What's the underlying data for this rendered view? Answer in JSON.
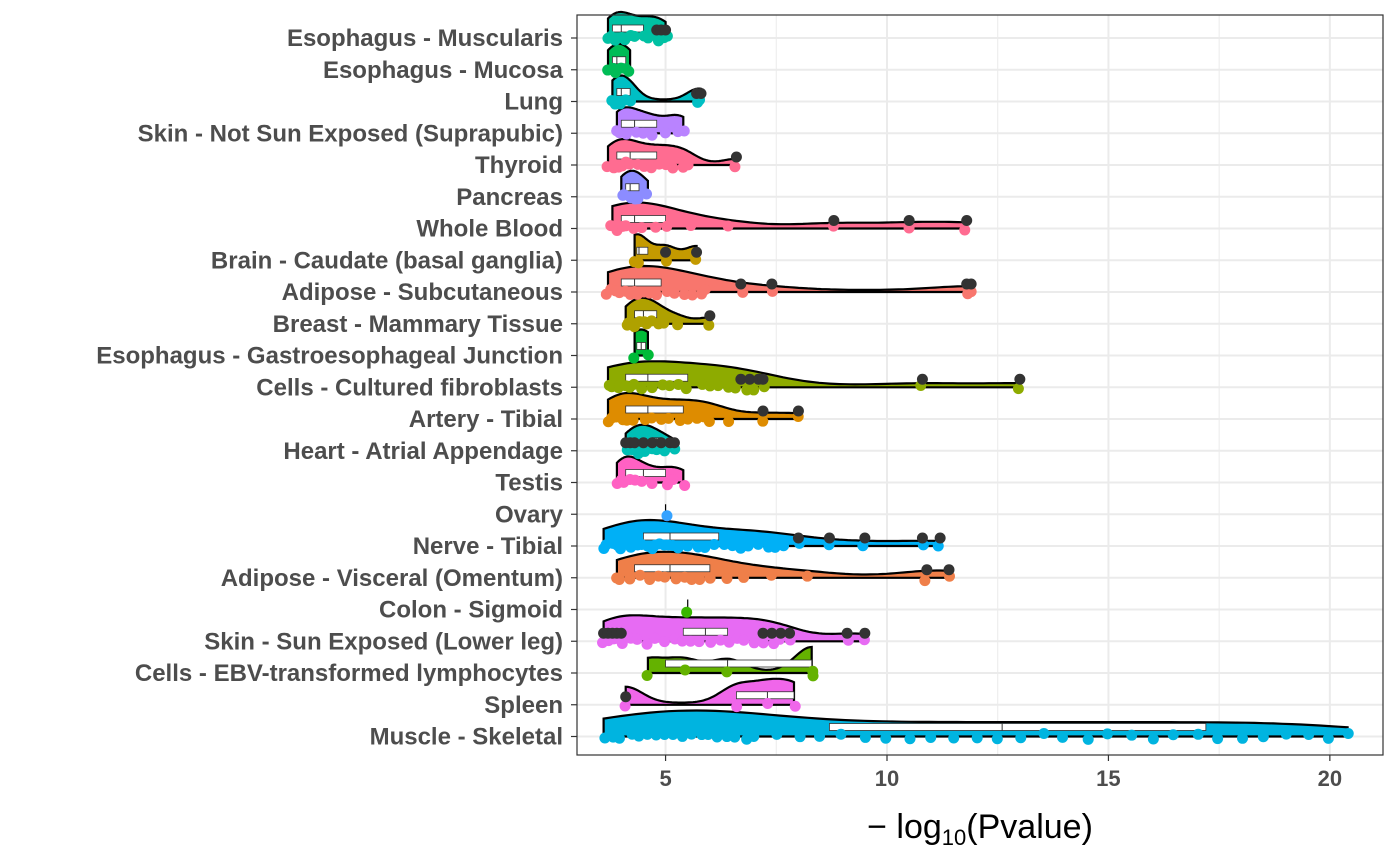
{
  "chart_data": {
    "type": "raincloud",
    "xlabel_base": "− log",
    "xlabel_sub": "10",
    "xlabel_arg": "(Pvalue)",
    "ylabel": "",
    "xlim": [
      3.0,
      21.2
    ],
    "x_ticks": [
      5,
      10,
      15,
      20
    ],
    "x_tick_labels": [
      "5",
      "10",
      "15",
      "20"
    ],
    "grid": true,
    "point_color_outlier": "#333333",
    "categories": [
      {
        "label": "Esophagus - Muscularis",
        "color": "#00C1A3",
        "points": [
          3.7,
          3.8,
          3.8,
          3.9,
          4.0,
          4.1,
          4.2,
          4.3,
          4.5,
          4.6,
          4.7,
          4.8,
          5.0,
          5.0
        ],
        "outliers": [
          4.8,
          4.9,
          5.0
        ],
        "median": 4.0,
        "q1": 3.8,
        "q3": 4.5
      },
      {
        "label": "Esophagus - Mucosa",
        "color": "#00BC56",
        "points": [
          3.7,
          3.8,
          3.9,
          4.0,
          4.1,
          4.2
        ],
        "outliers": [],
        "median": 3.9,
        "q1": 3.8,
        "q3": 4.1
      },
      {
        "label": "Lung",
        "color": "#00BFC4",
        "points": [
          3.8,
          3.9,
          4.0,
          4.1,
          4.2,
          5.7,
          5.8
        ],
        "outliers": [
          5.7,
          5.8
        ],
        "median": 4.0,
        "q1": 3.9,
        "q3": 4.2
      },
      {
        "label": "Skin - Not Sun Exposed (Suprapubic)",
        "color": "#B983FF",
        "points": [
          3.9,
          4.0,
          4.1,
          4.3,
          4.5,
          4.7,
          5.0,
          5.3,
          5.4
        ],
        "outliers": [],
        "median": 4.3,
        "q1": 4.0,
        "q3": 4.8
      },
      {
        "label": "Thyroid",
        "color": "#FF6C91",
        "points": [
          3.7,
          3.8,
          3.9,
          4.0,
          4.1,
          4.2,
          4.4,
          4.5,
          4.7,
          4.9,
          5.0,
          5.2,
          5.4,
          5.5,
          6.6
        ],
        "outliers": [
          6.6
        ],
        "median": 4.2,
        "q1": 3.9,
        "q3": 4.8
      },
      {
        "label": "Pancreas",
        "color": "#8C8CFF",
        "points": [
          4.0,
          4.1,
          4.2,
          4.3,
          4.4,
          4.6
        ],
        "outliers": [],
        "median": 4.2,
        "q1": 4.1,
        "q3": 4.4
      },
      {
        "label": "Whole Blood",
        "color": "#FF6C91",
        "points": [
          3.8,
          3.9,
          4.0,
          4.1,
          4.3,
          4.5,
          4.8,
          5.0,
          5.6,
          6.4,
          8.8,
          10.5,
          11.8
        ],
        "outliers": [
          8.8,
          10.5,
          11.8
        ],
        "median": 4.3,
        "q1": 4.0,
        "q3": 5.0
      },
      {
        "label": "Brain - Caudate (basal ganglia)",
        "color": "#C49A00",
        "points": [
          4.3,
          4.4,
          5.0,
          5.7
        ],
        "outliers": [
          5.0,
          5.7
        ],
        "median": 4.4,
        "q1": 4.35,
        "q3": 4.6
      },
      {
        "label": "Adipose - Subcutaneous",
        "color": "#F8766D",
        "points": [
          3.7,
          3.8,
          3.9,
          4.0,
          4.1,
          4.2,
          4.3,
          4.4,
          4.5,
          4.6,
          4.8,
          5.0,
          5.2,
          5.4,
          5.6,
          5.8,
          5.9,
          6.7,
          7.4,
          11.8,
          11.9
        ],
        "outliers": [
          6.7,
          7.4,
          11.8,
          11.9
        ],
        "median": 4.3,
        "q1": 4.0,
        "q3": 4.9
      },
      {
        "label": "Breast - Mammary Tissue",
        "color": "#AFA100",
        "points": [
          4.1,
          4.2,
          4.3,
          4.4,
          4.5,
          4.6,
          4.7,
          4.8,
          5.0,
          5.3,
          6.0
        ],
        "outliers": [
          6.0
        ],
        "median": 4.5,
        "q1": 4.3,
        "q3": 4.8
      },
      {
        "label": "Esophagus - Gastroesophageal Junction",
        "color": "#00BA38",
        "points": [
          4.3,
          4.6
        ],
        "outliers": [],
        "median": 4.45,
        "q1": 4.35,
        "q3": 4.55
      },
      {
        "label": "Cells - Cultured fibroblasts",
        "color": "#8EAB00",
        "points": [
          3.7,
          3.8,
          3.9,
          4.0,
          4.1,
          4.2,
          4.3,
          4.5,
          4.7,
          4.9,
          5.1,
          5.3,
          5.5,
          5.8,
          6.0,
          6.2,
          6.4,
          6.6,
          6.8,
          7.0,
          7.2,
          10.8,
          13.0
        ],
        "outliers": [
          6.7,
          6.9,
          7.1,
          7.2,
          10.8,
          13.0
        ],
        "median": 4.6,
        "q1": 4.1,
        "q3": 5.5
      },
      {
        "label": "Artery - Tibial",
        "color": "#DE8C00",
        "points": [
          3.7,
          3.8,
          3.9,
          4.0,
          4.1,
          4.2,
          4.3,
          4.5,
          4.7,
          4.9,
          5.1,
          5.3,
          5.5,
          5.7,
          5.9,
          6.0,
          6.4,
          7.2,
          8.0
        ],
        "outliers": [
          7.2,
          8.0
        ],
        "median": 4.6,
        "q1": 4.1,
        "q3": 5.4
      },
      {
        "label": "Heart - Atrial Appendage",
        "color": "#00BFB5",
        "points": [
          4.1,
          4.2,
          4.3,
          4.4,
          4.5,
          4.6,
          4.7,
          4.8,
          5.0,
          5.2
        ],
        "outliers": [
          4.1,
          4.2,
          4.3,
          4.5,
          4.7,
          4.9,
          5.1,
          5.2
        ],
        "median": 4.8,
        "q1": 4.7,
        "q3": 4.9
      },
      {
        "label": "Testis",
        "color": "#FF61C3",
        "points": [
          3.9,
          4.0,
          4.1,
          4.2,
          4.3,
          4.5,
          4.7,
          5.0,
          5.2,
          5.4
        ],
        "outliers": [],
        "median": 4.5,
        "q1": 4.1,
        "q3": 5.0
      },
      {
        "label": "Ovary",
        "color": "#35A2FF",
        "points": [
          5.0
        ],
        "outliers": [],
        "median": 5.0,
        "q1": 5.0,
        "q3": 5.0
      },
      {
        "label": "Nerve - Tibial",
        "color": "#00B0F6",
        "points": [
          3.6,
          3.7,
          3.8,
          3.9,
          4.0,
          4.1,
          4.2,
          4.3,
          4.4,
          4.5,
          4.6,
          4.7,
          4.8,
          4.9,
          5.0,
          5.1,
          5.2,
          5.3,
          5.5,
          5.7,
          5.9,
          6.1,
          6.3,
          6.5,
          6.7,
          6.9,
          7.1,
          7.3,
          7.5,
          7.7,
          8.0,
          8.7,
          9.5,
          10.8,
          11.2
        ],
        "outliers": [
          8.0,
          8.7,
          9.5,
          10.8,
          11.2
        ],
        "median": 5.1,
        "q1": 4.5,
        "q3": 6.2
      },
      {
        "label": "Adipose - Visceral (Omentum)",
        "color": "#EF7F49",
        "points": [
          3.9,
          4.0,
          4.2,
          4.4,
          4.6,
          4.8,
          5.0,
          5.2,
          5.4,
          5.6,
          5.8,
          6.0,
          6.4,
          6.8,
          7.4,
          8.2,
          10.9,
          11.4
        ],
        "outliers": [
          10.9,
          11.4
        ],
        "median": 5.1,
        "q1": 4.3,
        "q3": 6.0
      },
      {
        "label": "Colon - Sigmoid",
        "color": "#39B600",
        "points": [
          5.5
        ],
        "outliers": [],
        "median": 5.5,
        "q1": 5.5,
        "q3": 5.5
      },
      {
        "label": "Skin - Sun Exposed (Lower leg)",
        "color": "#E76BF3",
        "points": [
          3.6,
          3.7,
          3.8,
          3.9,
          4.0,
          4.2,
          4.4,
          4.6,
          4.8,
          5.0,
          5.2,
          5.4,
          5.6,
          5.8,
          6.0,
          6.2,
          6.4,
          6.6,
          6.8,
          7.0,
          7.2,
          7.4,
          7.6,
          7.8,
          9.1,
          9.5
        ],
        "outliers": [
          3.6,
          3.7,
          3.8,
          3.9,
          4.0,
          7.2,
          7.4,
          7.6,
          7.8,
          9.1,
          9.5
        ],
        "median": 5.9,
        "q1": 5.4,
        "q3": 6.4
      },
      {
        "label": "Cells - EBV-transformed lymphocytes",
        "color": "#64B200",
        "points": [
          4.6,
          5.4,
          6.4,
          8.3,
          8.3
        ],
        "outliers": [],
        "median": 6.4,
        "q1": 5.0,
        "q3": 8.3
      },
      {
        "label": "Spleen",
        "color": "#F066EA",
        "points": [
          4.1,
          6.6,
          7.3,
          7.9
        ],
        "outliers": [
          4.1
        ],
        "median": 7.3,
        "q1": 6.6,
        "q3": 7.9
      },
      {
        "label": "Muscle - Skeletal",
        "color": "#00B4E0",
        "points": [
          3.6,
          3.8,
          4.0,
          4.2,
          4.4,
          4.6,
          4.8,
          5.0,
          5.2,
          5.4,
          5.6,
          5.8,
          6.0,
          6.2,
          6.4,
          6.6,
          6.8,
          7.0,
          7.5,
          8.0,
          8.5,
          9.0,
          9.5,
          10.0,
          10.5,
          11.0,
          11.5,
          12.0,
          12.5,
          13.0,
          13.5,
          14.0,
          14.5,
          15.0,
          15.5,
          16.0,
          16.5,
          17.0,
          17.5,
          18.0,
          18.5,
          19.0,
          19.5,
          20.0,
          20.4
        ],
        "outliers": [],
        "median": 12.6,
        "q1": 8.7,
        "q3": 17.2
      }
    ]
  }
}
